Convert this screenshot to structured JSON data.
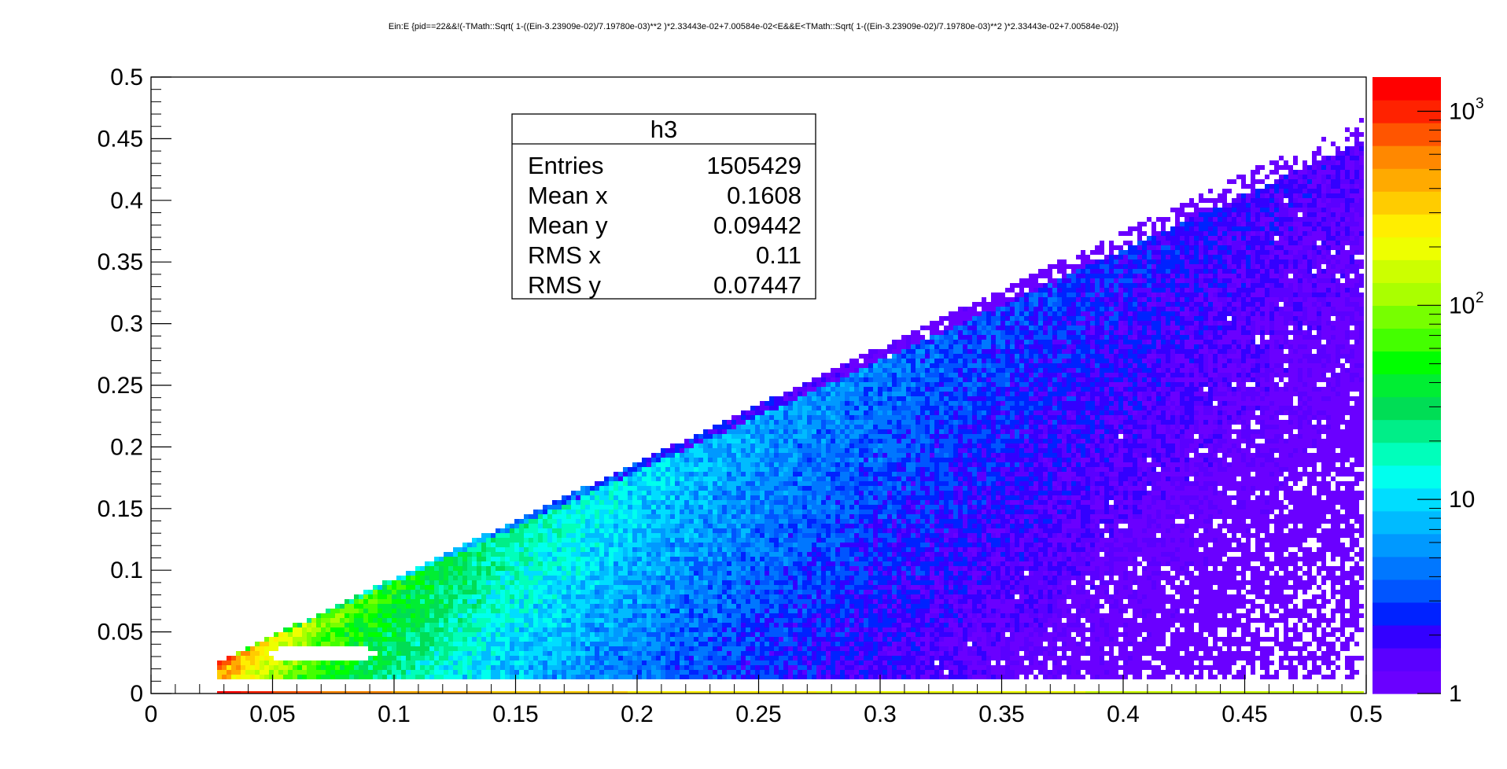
{
  "chart_data": {
    "type": "heatmap",
    "title": "Ein:E {pid==22&&!(-TMath::Sqrt( 1-((Ein-3.23909e-02)/7.19780e-03)**2 )*2.33443e-02+7.00584e-02<E&&E<TMath::Sqrt( 1-((Ein-3.23909e-02)/7.19780e-03)**2 )*2.33443e-02+7.00584e-02)}",
    "xlabel": "",
    "ylabel": "",
    "xlim": [
      0,
      0.5
    ],
    "ylim": [
      0,
      0.5
    ],
    "x_ticks": [
      "0",
      "0.05",
      "0.1",
      "0.15",
      "0.2",
      "0.25",
      "0.3",
      "0.35",
      "0.4",
      "0.45",
      "0.5"
    ],
    "y_ticks": [
      "0",
      "0.05",
      "0.1",
      "0.15",
      "0.2",
      "0.25",
      "0.3",
      "0.35",
      "0.4",
      "0.45",
      "0.5"
    ],
    "z_scale": "log",
    "z_range": [
      1,
      1500
    ],
    "z_labels": [
      {
        "base": "1",
        "exp": "",
        "value": 1
      },
      {
        "base": "10",
        "exp": "",
        "value": 10
      },
      {
        "base": "10",
        "exp": "2",
        "value": 100
      },
      {
        "base": "10",
        "exp": "3",
        "value": 1000
      }
    ],
    "palette": [
      "#6a00ff",
      "#5a00ff",
      "#3300ff",
      "#0022ff",
      "#0055ff",
      "#0077ff",
      "#0099ff",
      "#00bbff",
      "#00ddff",
      "#00ffee",
      "#00ffbb",
      "#00ee88",
      "#00dd55",
      "#00ee33",
      "#00ff00",
      "#44ff00",
      "#77ff00",
      "#aaff00",
      "#ccff00",
      "#eeff00",
      "#ffee00",
      "#ffcc00",
      "#ffaa00",
      "#ff8800",
      "#ff5500",
      "#ff2200",
      "#ff0000"
    ],
    "stats": {
      "name": "h3",
      "rows": [
        {
          "label": "Entries",
          "value": "1505429"
        },
        {
          "label": "Mean x",
          "value": "0.1608"
        },
        {
          "label": "Mean y",
          "value": "0.09442"
        },
        {
          "label": "RMS x",
          "value": "0.11"
        },
        {
          "label": "RMS y",
          "value": "0.07447"
        }
      ]
    },
    "distribution": {
      "x_min": 0.028,
      "upper_edge_slope": 0.94,
      "lower_edge_y": 0.011,
      "excluded_ellipse": {
        "x_center": 0.0704,
        "x_halfwidth": 0.0225,
        "y_center": 0.0324,
        "y_halfwidth": 0.0072
      }
    }
  }
}
